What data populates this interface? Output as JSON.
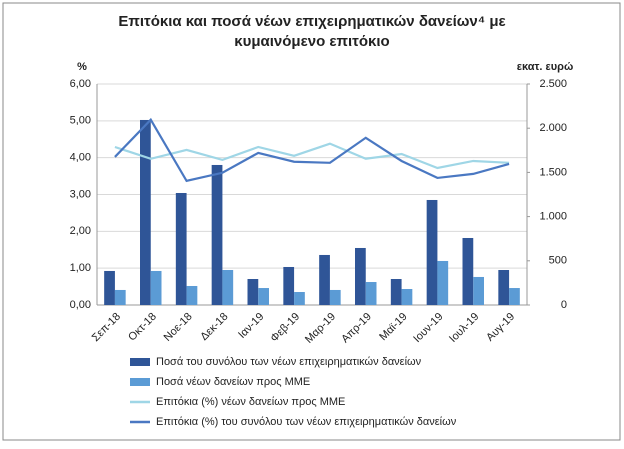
{
  "chart_data": {
    "type": "bar",
    "title": [
      "Επιτόκια και ποσά νέων επιχειρηματικών δανείων⁴ με",
      "κυμαινόμενο επιτόκιο"
    ],
    "y_label": "%",
    "y2_label": "εκατ. ευρώ",
    "categories": [
      "Σεπ-18",
      "Οκτ-18",
      "Νοε-18",
      "Δεκ-18",
      "Ιαν-19",
      "Φεβ-19",
      "Μαρ-19",
      "Απρ-19",
      "Μαϊ-19",
      "Ιουν-19",
      "Ιουλ-19",
      "Αυγ-19"
    ],
    "series": [
      {
        "name": "Ποσά του συνόλου των νέων επιχειρηματικών δανείων",
        "type": "bar",
        "axis": "y2",
        "color": "#2f5597",
        "values": [
          385,
          2093,
          1267,
          1584,
          294,
          430,
          566,
          645,
          294,
          1188,
          758,
          396
        ]
      },
      {
        "name": "Ποσά νέων δανείων προς ΜΜΕ",
        "type": "bar",
        "axis": "y2",
        "color": "#5b9bd5",
        "values": [
          170,
          385,
          215,
          396,
          192,
          147,
          170,
          260,
          181,
          498,
          317,
          192
        ]
      },
      {
        "name": "Επιτόκια (%) νέων δανείων προς ΜΜΕ",
        "type": "line",
        "axis": "y",
        "color": "#9fd6e6",
        "values": [
          4.29,
          3.97,
          4.21,
          3.94,
          4.29,
          4.05,
          4.38,
          3.97,
          4.1,
          3.72,
          3.91,
          3.86
        ]
      },
      {
        "name": "Επιτόκια (%) του συνόλου των νέων επιχειρηματικών δανείων",
        "type": "line",
        "axis": "y",
        "color": "#4a78c2",
        "values": [
          4.02,
          5.03,
          3.37,
          3.59,
          4.13,
          3.89,
          3.86,
          4.54,
          3.91,
          3.45,
          3.56,
          3.83
        ]
      }
    ],
    "ylim": [
      0,
      6
    ],
    "yticks": [
      {
        "value": 0,
        "label": "0,00"
      },
      {
        "value": 1,
        "label": "1,00"
      },
      {
        "value": 2,
        "label": "2,00"
      },
      {
        "value": 3,
        "label": "3,00"
      },
      {
        "value": 4,
        "label": "4,00"
      },
      {
        "value": 5,
        "label": "5,00"
      },
      {
        "value": 6,
        "label": "6,00"
      }
    ],
    "y2lim": [
      0,
      2500
    ],
    "y2ticks": [
      0,
      500,
      {
        "value": 1000,
        "label": "1.000"
      },
      {
        "value": 1500,
        "label": "1.500"
      },
      {
        "value": 2000,
        "label": "2.000"
      },
      {
        "value": 2500,
        "label": "2.500"
      }
    ],
    "grid": true,
    "legend": "bottom"
  }
}
